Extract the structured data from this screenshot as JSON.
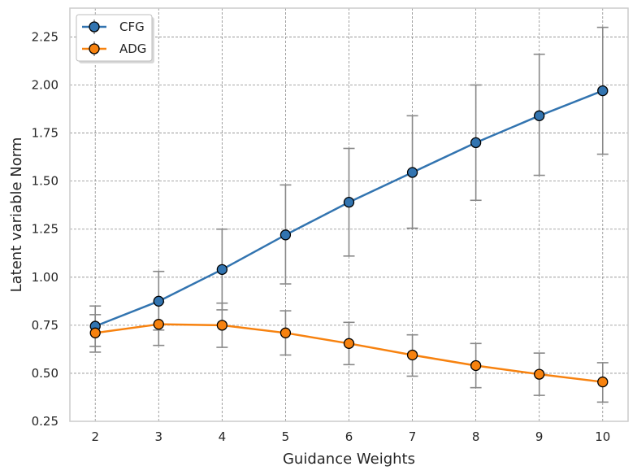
{
  "chart_data": {
    "type": "line",
    "title": "",
    "xlabel": "Guidance Weights",
    "ylabel": "Latent variable Norm",
    "x": [
      2,
      3,
      4,
      5,
      6,
      7,
      8,
      9,
      10
    ],
    "x_ticks": [
      "2",
      "3",
      "4",
      "5",
      "6",
      "7",
      "8",
      "9",
      "10"
    ],
    "xlim": [
      1.6,
      10.4
    ],
    "ylim": [
      0.25,
      2.4
    ],
    "y_ticks": [
      "0.25",
      "0.50",
      "0.75",
      "1.00",
      "1.25",
      "1.50",
      "1.75",
      "2.00",
      "2.25"
    ],
    "y_tick_values": [
      0.25,
      0.5,
      0.75,
      1.0,
      1.25,
      1.5,
      1.75,
      2.0,
      2.25
    ],
    "grid": true,
    "legend_position": "top-left",
    "series": [
      {
        "name": "CFG",
        "color": "#3274b0",
        "values": [
          0.745,
          0.875,
          1.04,
          1.22,
          1.39,
          1.545,
          1.7,
          1.84,
          1.97
        ],
        "err_low": [
          0.64,
          0.725,
          0.83,
          0.965,
          1.11,
          1.255,
          1.4,
          1.53,
          1.64
        ],
        "err_high": [
          0.85,
          1.03,
          1.25,
          1.48,
          1.67,
          1.84,
          2.0,
          2.16,
          2.3
        ]
      },
      {
        "name": "ADG",
        "color": "#f7820f",
        "values": [
          0.71,
          0.755,
          0.75,
          0.71,
          0.655,
          0.595,
          0.54,
          0.495,
          0.455
        ],
        "err_low": [
          0.61,
          0.645,
          0.635,
          0.595,
          0.545,
          0.485,
          0.425,
          0.385,
          0.35
        ],
        "err_high": [
          0.805,
          0.87,
          0.865,
          0.825,
          0.765,
          0.7,
          0.655,
          0.605,
          0.555
        ]
      }
    ]
  }
}
